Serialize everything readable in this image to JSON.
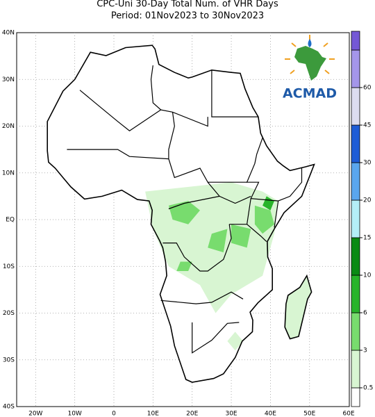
{
  "header": {
    "title": "CPC-Uni 30-Day Total Num. of VHR Days",
    "period": "Period: 01Nov2023 to 30Nov2023"
  },
  "map": {
    "lat_labels": [
      "40N",
      "30N",
      "20N",
      "10N",
      "EQ",
      "10S",
      "20S",
      "30S",
      "40S"
    ],
    "lon_labels": [
      "20W",
      "10W",
      "0",
      "10E",
      "20E",
      "30E",
      "40E",
      "50E",
      "60E"
    ]
  },
  "colorbar": {
    "ticks": [
      0.5,
      3,
      6,
      10,
      15,
      20,
      30,
      45,
      60
    ],
    "colors": [
      "#ffffff",
      "#d8f5d2",
      "#78dc6e",
      "#28b42a",
      "#0a8a14",
      "#b4eff8",
      "#5aa6ee",
      "#1e5cd6",
      "#dcdcf0",
      "#a496ea",
      "#7458d6"
    ]
  },
  "logo": {
    "text": "ACMAD"
  }
}
